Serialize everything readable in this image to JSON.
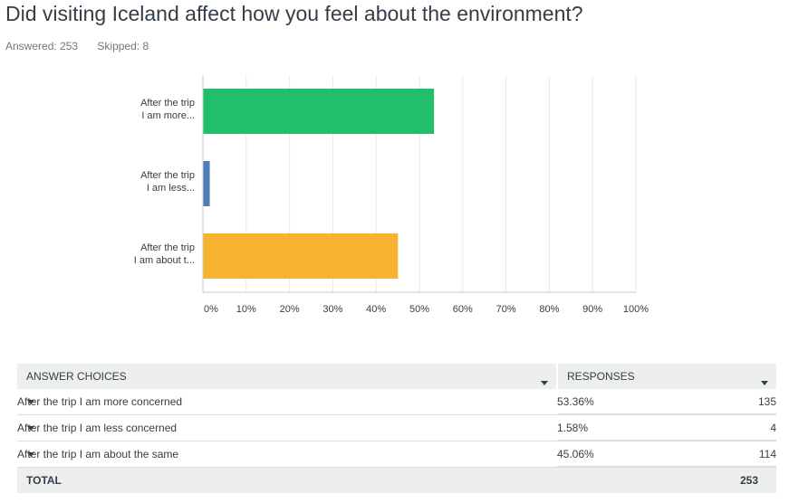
{
  "question": {
    "title": "Did visiting Iceland affect how you feel about the environment?",
    "answered_label": "Answered: 253",
    "skipped_label": "Skipped: 8"
  },
  "chart_data": {
    "type": "bar",
    "orientation": "horizontal",
    "categories": [
      [
        "After the trip",
        "I am more..."
      ],
      [
        "After the trip",
        "I am less..."
      ],
      [
        "After the trip",
        "I am about t..."
      ]
    ],
    "values": [
      53.36,
      1.58,
      45.06
    ],
    "colors": [
      "#21bf6b",
      "#507cb6",
      "#f7b230"
    ],
    "xlim": [
      0,
      100
    ],
    "ticks": [
      0,
      10,
      20,
      30,
      40,
      50,
      60,
      70,
      80,
      90,
      100
    ],
    "tick_labels": [
      "0%",
      "10%",
      "20%",
      "30%",
      "40%",
      "50%",
      "60%",
      "70%",
      "80%",
      "90%",
      "100%"
    ],
    "grid": true,
    "legend": "none"
  },
  "table": {
    "headers": {
      "choices": "ANSWER CHOICES",
      "responses": "RESPONSES"
    },
    "rows": [
      {
        "choice": "After the trip I am more concerned",
        "percent": "53.36%",
        "count": "135"
      },
      {
        "choice": "After the trip I am less concerned",
        "percent": "1.58%",
        "count": "4"
      },
      {
        "choice": "After the trip I am about the same",
        "percent": "45.06%",
        "count": "114"
      }
    ],
    "total_label": "TOTAL",
    "total_value": "253"
  },
  "icons": {
    "sort": "chevron-down-icon",
    "expand": "caret-down-icon"
  }
}
